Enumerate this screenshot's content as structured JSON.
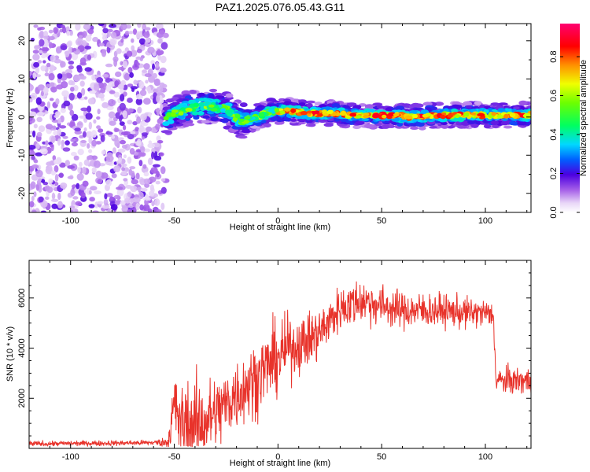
{
  "title": "PAZ1.2025.076.05.43.G11",
  "colors": {
    "snr_line": "#e8332b",
    "axis": "#000000"
  },
  "chart_data": [
    {
      "type": "heatmap",
      "xlabel": "Height of straight line (km)",
      "ylabel": "Frequency (Hz)",
      "xlim": [
        -120,
        122
      ],
      "ylim": [
        -25,
        24.5
      ],
      "xticks": [
        -100,
        -50,
        0,
        50,
        100
      ],
      "yticks": [
        -20,
        -10,
        0,
        10,
        20
      ],
      "colorbar": {
        "label": "Normalized spectral amplitude",
        "range": [
          0,
          0.97
        ],
        "ticks": [
          0.0,
          0.2,
          0.4,
          0.6,
          0.8
        ],
        "tick_labels": [
          "0.0",
          "0.2",
          "0.4",
          "0.6",
          "0.8"
        ],
        "colormap": "rainbow"
      },
      "noise_region_x": [
        -120,
        -54
      ],
      "signal_center_frequency": [
        {
          "x": -54,
          "f": 0.0
        },
        {
          "x": -45,
          "f": 2.0
        },
        {
          "x": -35,
          "f": 3.0
        },
        {
          "x": -25,
          "f": 2.0
        },
        {
          "x": -18,
          "f": -1.0
        },
        {
          "x": -10,
          "f": 0.0
        },
        {
          "x": -3,
          "f": 1.5
        },
        {
          "x": 5,
          "f": 1.5
        },
        {
          "x": 15,
          "f": 1.0
        },
        {
          "x": 25,
          "f": 1.0
        },
        {
          "x": 35,
          "f": 0.5
        },
        {
          "x": 45,
          "f": 0.5
        },
        {
          "x": 55,
          "f": 0.5
        },
        {
          "x": 65,
          "f": 0.0
        },
        {
          "x": 75,
          "f": 0.5
        },
        {
          "x": 85,
          "f": 0.5
        },
        {
          "x": 95,
          "f": 0.5
        },
        {
          "x": 105,
          "f": 0.5
        },
        {
          "x": 115,
          "f": 0.5
        },
        {
          "x": 122,
          "f": 0.5
        }
      ]
    },
    {
      "type": "line",
      "xlabel": "Height of straight line (km)",
      "ylabel": "SNR (10 * v/v)",
      "xlim": [
        -120,
        122
      ],
      "ylim": [
        0,
        7500
      ],
      "xticks": [
        -100,
        -50,
        0,
        50,
        100
      ],
      "yticks": [
        2000,
        4000,
        6000
      ],
      "series": [
        {
          "x": [
            -120,
            -100,
            -80,
            -60,
            -53,
            -50,
            -47,
            -42,
            -35,
            -28,
            -20,
            -12,
            -5,
            0,
            5,
            12,
            20,
            25,
            30,
            40,
            50,
            60,
            70,
            80,
            90,
            100,
            104,
            105,
            110,
            122
          ],
          "mean": [
            180,
            200,
            210,
            230,
            250,
            1700,
            1000,
            900,
            1100,
            1500,
            2200,
            2700,
            3300,
            3600,
            4000,
            4200,
            4600,
            5100,
            5600,
            5900,
            5700,
            5500,
            5500,
            5500,
            5400,
            5400,
            5300,
            2700,
            2700,
            2700
          ],
          "spread": [
            60,
            60,
            60,
            60,
            120,
            900,
            900,
            1000,
            900,
            800,
            800,
            800,
            800,
            800,
            700,
            600,
            600,
            500,
            500,
            500,
            450,
            400,
            400,
            350,
            350,
            300,
            300,
            300,
            300,
            300
          ]
        }
      ]
    }
  ]
}
